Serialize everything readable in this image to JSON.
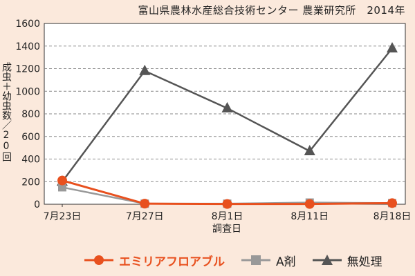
{
  "header": {
    "subtitle": "富山県農林水産総合技術センター 農業研究所　2014年"
  },
  "colors": {
    "background": "#fbe9dc",
    "emiria": "#e8501e",
    "a_agent": "#999999",
    "untreated": "#555555"
  },
  "chart_data": {
    "type": "line",
    "title": "",
    "xlabel": "調査日",
    "ylabel": "成虫＋幼虫数／20回",
    "categories": [
      "7月23日",
      "7月27日",
      "8月1日",
      "8月11日",
      "8月18日"
    ],
    "ylim": [
      0,
      1600
    ],
    "yticks": [
      0,
      200,
      400,
      600,
      800,
      1000,
      1200,
      1400,
      1600
    ],
    "grid": true,
    "legend_position": "bottom",
    "series": [
      {
        "name": "エミリアフロアブル",
        "marker": "circle",
        "color": "#e8501e",
        "values": [
          210,
          5,
          2,
          2,
          10
        ]
      },
      {
        "name": "A剤",
        "marker": "square",
        "color": "#999999",
        "values": [
          150,
          5,
          5,
          15,
          10
        ]
      },
      {
        "name": "無処理",
        "marker": "triangle",
        "color": "#555555",
        "values": [
          200,
          1180,
          850,
          470,
          1380
        ]
      }
    ]
  }
}
